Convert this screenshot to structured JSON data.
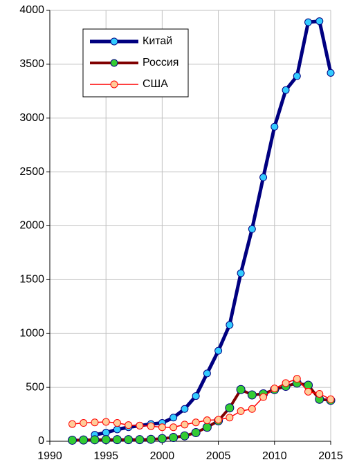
{
  "chart_data": {
    "type": "line",
    "x": [
      1992,
      1993,
      1994,
      1995,
      1996,
      1997,
      1998,
      1999,
      2000,
      2001,
      2002,
      2003,
      2004,
      2005,
      2006,
      2007,
      2008,
      2009,
      2010,
      2011,
      2012,
      2013,
      2014,
      2015
    ],
    "series": [
      {
        "name": "Китай",
        "color": "#000080",
        "marker_color": "#33ccff",
        "line_width": 5,
        "values": [
          null,
          null,
          60,
          80,
          110,
          130,
          145,
          160,
          170,
          220,
          300,
          420,
          630,
          840,
          1080,
          1560,
          1970,
          2450,
          2920,
          3260,
          3390,
          3890,
          3900,
          3420
        ]
      },
      {
        "name": "Россия",
        "color": "#800000",
        "marker_color": "#33cc33",
        "line_width": 4,
        "values": [
          10,
          12,
          14,
          15,
          15,
          15,
          15,
          18,
          25,
          35,
          50,
          80,
          130,
          190,
          310,
          480,
          430,
          440,
          480,
          510,
          540,
          520,
          390,
          380
        ]
      },
      {
        "name": "США",
        "color": "#ff0000",
        "marker_color": "#ffcc99",
        "line_width": 1.5,
        "values": [
          160,
          170,
          175,
          180,
          170,
          150,
          145,
          140,
          130,
          130,
          155,
          175,
          195,
          200,
          220,
          280,
          300,
          410,
          490,
          540,
          580,
          460,
          440,
          390
        ]
      }
    ],
    "xlim": [
      1990,
      2015
    ],
    "xticks": [
      1990,
      1995,
      2000,
      2005,
      2010,
      2015
    ],
    "ylim": [
      0,
      4000
    ],
    "yticks": [
      0,
      500,
      1000,
      1500,
      2000,
      2500,
      3000,
      3500,
      4000
    ],
    "grid": true,
    "legend": "upper left"
  }
}
